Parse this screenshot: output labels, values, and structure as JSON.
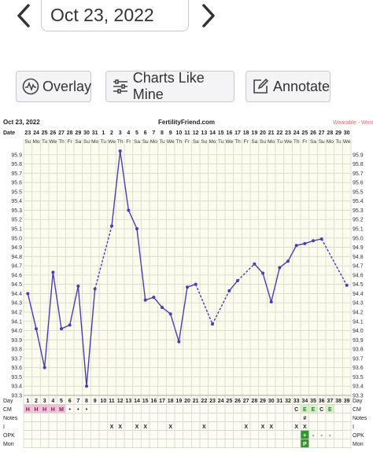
{
  "header": {
    "date": "Oct 23, 2022"
  },
  "buttons": {
    "overlay": "Overlay",
    "charts_like_mine": "Charts Like Mine",
    "annotate": "Annotate"
  },
  "colors": {
    "accent": "#4a3fb0",
    "grid": "#d8d8c8",
    "plot_bg": "#fbfbee",
    "cm_h": "#f0c0d8",
    "cm_e": "#d6f0c8",
    "opk_plus": "#2e9a2e",
    "watermark": "#e07070"
  },
  "icons": {
    "prev": "chevron-left-icon",
    "next": "chevron-right-icon",
    "overlay": "wave-icon",
    "charts_like_mine": "sliders-icon",
    "annotate": "edit-icon"
  },
  "chart_data": {
    "type": "line",
    "chart_date": "Oct 23, 2022",
    "site": "FertilityFriend.com",
    "watermark": "Wearable - Wrist",
    "row_label_date": "Date",
    "dates": [
      "23",
      "24",
      "25",
      "26",
      "27",
      "28",
      "29",
      "30",
      "31",
      "1",
      "2",
      "3",
      "4",
      "5",
      "6",
      "7",
      "8",
      "9",
      "10",
      "11",
      "12",
      "13",
      "14",
      "15",
      "16",
      "17",
      "18",
      "19",
      "20",
      "21",
      "22",
      "23",
      "24",
      "25",
      "26",
      "27",
      "28",
      "29",
      "30"
    ],
    "weekdays": [
      "Su",
      "Mo",
      "Tu",
      "We",
      "Th",
      "Fr",
      "Sa",
      "Su",
      "Mo",
      "Tu",
      "We",
      "Th",
      "Fr",
      "Sa",
      "Su",
      "Mo",
      "Tu",
      "We",
      "Th",
      "Fr",
      "Sa",
      "Su",
      "Mo",
      "Tu",
      "We",
      "Th",
      "Fr",
      "Sa",
      "Su",
      "Mo",
      "Tu",
      "We",
      "Th",
      "Fr",
      "Sa",
      "Su",
      "Mo",
      "Tu",
      "We"
    ],
    "ylim": [
      93.3,
      96.0
    ],
    "yticks": [
      "95.9",
      "95.8",
      "95.7",
      "95.6",
      "95.5",
      "95.4",
      "95.3",
      "95.2",
      "95.1",
      "95.0",
      "94.9",
      "94.8",
      "94.7",
      "94.6",
      "94.5",
      "94.4",
      "94.3",
      "94.2",
      "94.1",
      "94.0",
      "93.9",
      "93.8",
      "93.7",
      "93.6",
      "93.5",
      "93.4",
      "93.3"
    ],
    "series": [
      {
        "values": [
          94.4,
          94.02,
          93.6,
          94.63,
          94.02,
          94.06,
          94.48,
          93.4,
          94.45,
          null,
          95.13,
          95.94,
          95.3,
          95.1,
          94.33,
          94.36,
          94.25,
          94.18,
          93.88,
          94.47,
          94.5,
          null,
          94.07,
          null,
          94.43,
          94.54,
          null,
          94.72,
          94.62,
          94.31,
          94.68,
          94.75,
          94.92,
          94.94,
          94.97,
          94.99,
          null,
          null,
          94.49
        ]
      }
    ],
    "rows": {
      "day_label": "Day",
      "days": [
        "1",
        "2",
        "3",
        "4",
        "5",
        "6",
        "7",
        "8",
        "9",
        "10",
        "11",
        "12",
        "13",
        "14",
        "15",
        "16",
        "17",
        "18",
        "19",
        "20",
        "21",
        "22",
        "23",
        "24",
        "25",
        "26",
        "27",
        "28",
        "29",
        "30",
        "31",
        "32",
        "33",
        "34",
        "35",
        "36",
        "37",
        "38",
        "39"
      ],
      "cm_label": "CM",
      "cm": [
        "H",
        "H",
        "H",
        "H",
        "M",
        "•",
        "•",
        "•",
        "",
        "",
        "",
        "",
        "",
        "",
        "",
        "",
        "",
        "",
        "",
        "",
        "",
        "",
        "",
        "",
        "",
        "",
        "",
        "",
        "",
        "",
        "",
        "",
        "C",
        "E",
        "E",
        "C",
        "E",
        "",
        ""
      ],
      "notes_label": "Notes",
      "notes": [
        "",
        "",
        "",
        "",
        "",
        "",
        "",
        "",
        "",
        "",
        "",
        "",
        "",
        "",
        "",
        "",
        "",
        "",
        "",
        "",
        "",
        "",
        "",
        "",
        "",
        "",
        "",
        "",
        "",
        "",
        "",
        "",
        "",
        "#",
        "",
        "",
        "",
        "",
        ""
      ],
      "i_label": "I",
      "intercourse": [
        "",
        "",
        "",
        "",
        "",
        "",
        "",
        "",
        "",
        "",
        "X",
        "X",
        "",
        "X",
        "X",
        "",
        "",
        "X",
        "",
        "",
        "",
        "X",
        "",
        "",
        "",
        "",
        "X",
        "",
        "X",
        "X",
        "",
        "",
        "X",
        "X",
        "",
        "",
        "",
        "",
        ""
      ],
      "opk_label": "OPK",
      "opk": [
        "",
        "",
        "",
        "",
        "",
        "",
        "",
        "",
        "",
        "",
        "",
        "",
        "",
        "",
        "",
        "",
        "",
        "",
        "",
        "",
        "",
        "",
        "",
        "",
        "",
        "",
        "",
        "",
        "",
        "",
        "",
        "",
        "",
        "+",
        "-",
        "-",
        "-",
        "",
        ""
      ],
      "mon_label": "Mon",
      "mon": [
        "",
        "",
        "",
        "",
        "",
        "",
        "",
        "",
        "",
        "",
        "",
        "",
        "",
        "",
        "",
        "",
        "",
        "",
        "",
        "",
        "",
        "",
        "",
        "",
        "",
        "",
        "",
        "",
        "",
        "",
        "",
        "",
        "",
        "P",
        "",
        "",
        "",
        "",
        ""
      ]
    }
  }
}
